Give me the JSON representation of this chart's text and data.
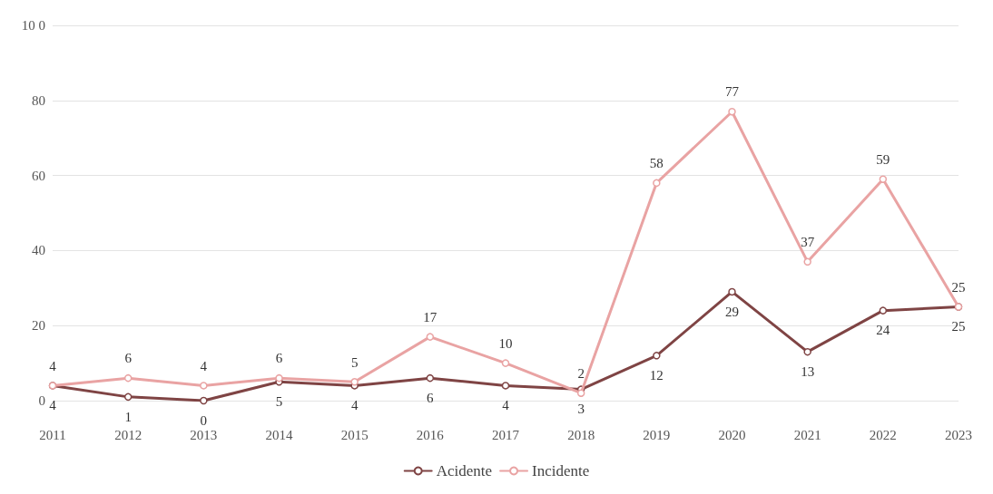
{
  "chart_data": {
    "type": "line",
    "categories": [
      "2011",
      "2012",
      "2013",
      "2014",
      "2015",
      "2016",
      "2017",
      "2018",
      "2019",
      "2020",
      "2021",
      "2022",
      "2023"
    ],
    "series": [
      {
        "name": "Acidente",
        "color": "#7f4444",
        "values": [
          4,
          1,
          0,
          5,
          4,
          6,
          4,
          3,
          12,
          29,
          13,
          24,
          25
        ]
      },
      {
        "name": "Incidente",
        "color": "#e9a3a3",
        "values": [
          4,
          6,
          4,
          6,
          5,
          17,
          10,
          2,
          58,
          77,
          37,
          59,
          25
        ]
      }
    ],
    "ylim": [
      0,
      100
    ],
    "yticks": [
      0,
      20,
      40,
      60,
      80,
      {
        "value": 100,
        "label": "10 0"
      }
    ],
    "grid": "y",
    "legend": "bottom",
    "marker": "circle",
    "line_style": "solid",
    "data_labels": true
  }
}
